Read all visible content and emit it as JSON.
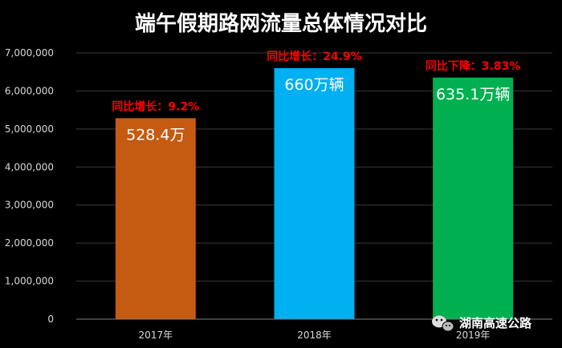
{
  "chart_data": {
    "type": "bar",
    "title": "端午假期路网流量总体情况对比",
    "categories": [
      "2017年",
      "2018年",
      "2019年"
    ],
    "values": [
      5284000,
      6600000,
      6351000
    ],
    "bar_labels": [
      "528.4万",
      "660万辆",
      "635.1万辆"
    ],
    "annotations": [
      "同比增长：9.2%",
      "同比增长：24.9%",
      "同比下降：3.83%"
    ],
    "colors": [
      "#c55a11",
      "#00b0f0",
      "#00b050"
    ],
    "annotation_color": "#ff0000",
    "ylim": [
      0,
      7000000
    ],
    "yticks": [
      0,
      1000000,
      2000000,
      3000000,
      4000000,
      5000000,
      6000000,
      7000000
    ],
    "ytick_labels": [
      "0",
      "1,000,000",
      "2,000,000",
      "3,000,000",
      "4,000,000",
      "5,000,000",
      "6,000,000",
      "7,000,000"
    ],
    "grid": true,
    "xlabel": "",
    "ylabel": ""
  },
  "watermark": {
    "text": "湖南高速公路",
    "icon": "wechat-icon"
  }
}
